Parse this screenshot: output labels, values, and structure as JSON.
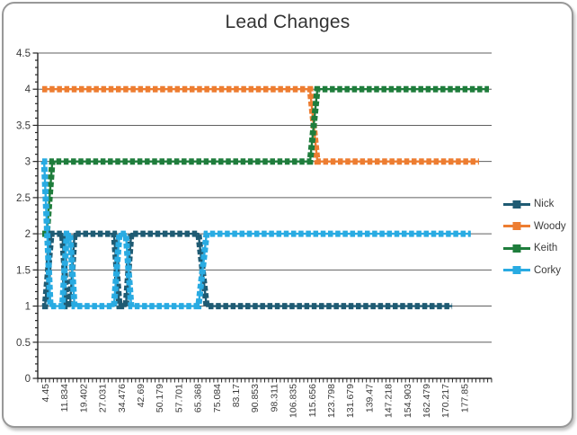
{
  "chart_data": {
    "type": "line",
    "title": "Lead Changes",
    "xlabel": "",
    "ylabel": "",
    "ylim": [
      0,
      4.5
    ],
    "y_tick_interval": 0.5,
    "y_minor_tick_interval": 0.1,
    "y_tick_labels": [
      "0",
      "0.5",
      "1",
      "1.5",
      "2",
      "2.5",
      "3",
      "3.5",
      "4",
      "4.5"
    ],
    "x_tick_labels": [
      "4.45",
      "11.834",
      "19.402",
      "27.031",
      "34.476",
      "42.69",
      "50.179",
      "57.701",
      "65.368",
      "75.084",
      "83.17",
      "90.853",
      "98.311",
      "106.835",
      "115.656",
      "123.798",
      "131.679",
      "139.47",
      "147.218",
      "154.903",
      "162.479",
      "170.217",
      "177.85"
    ],
    "x_unit": "axis-fraction",
    "grid": "horizontal",
    "legend_position": "right",
    "legend": [
      "Nick",
      "Woody",
      "Keith",
      "Corky"
    ],
    "series": [
      {
        "name": "Nick",
        "color": "#1F5B73",
        "points": [
          [
            0.01,
            1
          ],
          [
            0.016,
            1
          ],
          [
            0.03,
            2
          ],
          [
            0.054,
            2
          ],
          [
            0.064,
            1
          ],
          [
            0.071,
            1
          ],
          [
            0.081,
            2
          ],
          [
            0.168,
            2
          ],
          [
            0.18,
            1
          ],
          [
            0.194,
            1
          ],
          [
            0.206,
            2
          ],
          [
            0.354,
            2
          ],
          [
            0.372,
            1
          ],
          [
            0.913,
            1
          ]
        ]
      },
      {
        "name": "Woody",
        "color": "#ED7D31",
        "points": [
          [
            0.01,
            4
          ],
          [
            0.6,
            4
          ],
          [
            0.616,
            3
          ],
          [
            0.972,
            3
          ]
        ]
      },
      {
        "name": "Keith",
        "color": "#1F7D3C",
        "points": [
          [
            0.01,
            2
          ],
          [
            0.02,
            2
          ],
          [
            0.032,
            3
          ],
          [
            0.6,
            3
          ],
          [
            0.616,
            4
          ],
          [
            0.994,
            4
          ]
        ]
      },
      {
        "name": "Corky",
        "color": "#29ABE2",
        "points": [
          [
            0.01,
            3
          ],
          [
            0.014,
            3
          ],
          [
            0.028,
            1
          ],
          [
            0.054,
            1
          ],
          [
            0.064,
            2
          ],
          [
            0.071,
            2
          ],
          [
            0.081,
            1
          ],
          [
            0.168,
            1
          ],
          [
            0.18,
            2
          ],
          [
            0.194,
            2
          ],
          [
            0.206,
            1
          ],
          [
            0.354,
            1
          ],
          [
            0.372,
            2
          ],
          [
            0.954,
            2
          ]
        ]
      }
    ],
    "colors": {
      "axis": "#262626",
      "gridline": "#5f5f5f",
      "tick_label": "#3a3a3a",
      "title": "#333333"
    }
  }
}
